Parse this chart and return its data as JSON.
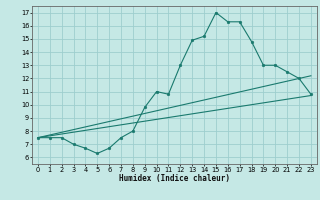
{
  "xlabel": "Humidex (Indice chaleur)",
  "xlim": [
    -0.5,
    23.5
  ],
  "ylim": [
    5.5,
    17.5
  ],
  "xticks": [
    0,
    1,
    2,
    3,
    4,
    5,
    6,
    7,
    8,
    9,
    10,
    11,
    12,
    13,
    14,
    15,
    16,
    17,
    18,
    19,
    20,
    21,
    22,
    23
  ],
  "yticks": [
    6,
    7,
    8,
    9,
    10,
    11,
    12,
    13,
    14,
    15,
    16,
    17
  ],
  "bg_color": "#c5e8e5",
  "grid_color": "#9ecece",
  "line_color": "#1a7a6e",
  "line1_x": [
    0,
    1,
    2,
    3,
    4,
    5,
    6,
    7,
    8,
    9,
    10,
    11,
    12,
    13,
    14,
    15,
    16,
    17,
    18,
    19,
    20,
    21,
    22,
    23
  ],
  "line1_y": [
    7.5,
    7.5,
    7.5,
    7.0,
    6.7,
    6.3,
    6.7,
    7.5,
    8.0,
    9.8,
    11.0,
    10.8,
    13.0,
    14.9,
    15.2,
    17.0,
    16.3,
    16.3,
    14.8,
    13.0,
    13.0,
    12.5,
    12.0,
    10.8
  ],
  "line2_x": [
    0,
    23
  ],
  "line2_y": [
    7.5,
    10.7
  ],
  "line3_x": [
    0,
    23
  ],
  "line3_y": [
    7.5,
    12.2
  ]
}
